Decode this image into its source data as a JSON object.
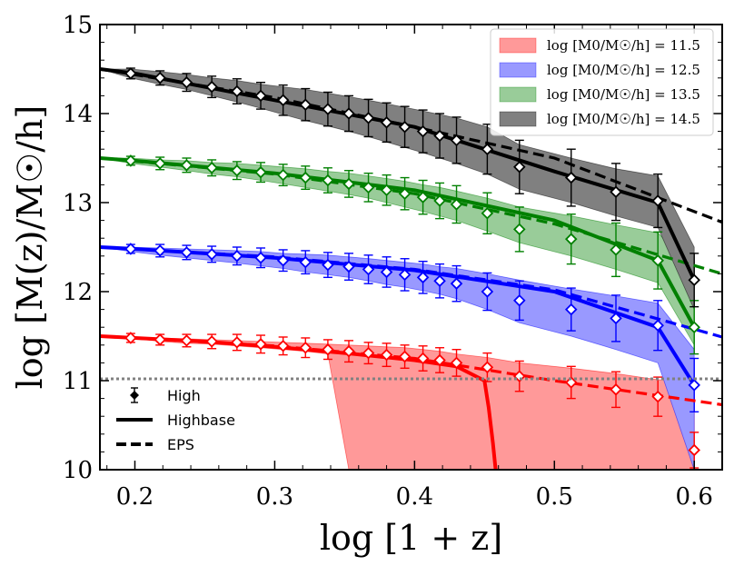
{
  "chart_data": {
    "type": "line",
    "xlabel": "log [1 + z]",
    "ylabel": "log [M(z)/M☉/h]",
    "xlim": [
      0.175,
      0.62
    ],
    "ylim": [
      10,
      15
    ],
    "xticks": [
      0.2,
      0.3,
      0.4,
      0.5,
      0.6
    ],
    "xtick_labels": [
      "0.2",
      "0.3",
      "0.4",
      "0.5",
      "0.6"
    ],
    "yticks": [
      10,
      11,
      12,
      13,
      14,
      15
    ],
    "ytick_labels": [
      "10",
      "11",
      "12",
      "13",
      "14",
      "15"
    ],
    "threshold_line": {
      "y": 11.02,
      "style": "dotted",
      "color": "#808080"
    },
    "x": [
      0.175,
      0.197,
      0.218,
      0.237,
      0.255,
      0.273,
      0.29,
      0.306,
      0.322,
      0.338,
      0.353,
      0.367,
      0.38,
      0.393,
      0.406,
      0.418,
      0.43,
      0.452,
      0.475,
      0.512,
      0.544,
      0.574,
      0.6
    ],
    "series": [
      {
        "name": "log [M0/M☉/h] = 11.5",
        "color": "#ff0000",
        "fill": "#ff9999",
        "mean": [
          11.5,
          11.48,
          11.46,
          11.45,
          11.44,
          11.43,
          11.41,
          11.39,
          11.37,
          11.35,
          11.33,
          11.31,
          11.29,
          11.27,
          11.25,
          11.23,
          11.2,
          11.15,
          11.05,
          10.98,
          10.9,
          10.82,
          10.22
        ],
        "err": [
          0.02,
          0.05,
          0.06,
          0.07,
          0.08,
          0.09,
          0.1,
          0.1,
          0.11,
          0.11,
          0.12,
          0.12,
          0.13,
          0.13,
          0.14,
          0.14,
          0.15,
          0.16,
          0.17,
          0.18,
          0.2,
          0.22,
          0.2
        ],
        "band_upper": [
          11.5,
          11.48,
          11.48,
          11.47,
          11.46,
          11.45,
          11.44,
          11.43,
          11.42,
          11.41,
          11.4,
          11.39,
          11.38,
          11.37,
          11.35,
          11.33,
          11.3,
          11.26,
          11.2,
          11.14,
          11.08,
          11.01,
          11.01
        ],
        "band_lower": [
          11.5,
          11.48,
          11.44,
          11.42,
          11.41,
          11.39,
          11.37,
          11.35,
          11.33,
          11.3,
          10,
          10,
          10,
          10,
          10,
          10,
          10,
          10,
          10,
          10,
          10,
          10,
          10
        ],
        "highbase_x": [
          0.175,
          0.2,
          0.25,
          0.3,
          0.35,
          0.4,
          0.43,
          0.45,
          0.453,
          0.456,
          0.458
        ],
        "highbase_y": [
          11.5,
          11.48,
          11.44,
          11.38,
          11.31,
          11.23,
          11.16,
          11.0,
          10.7,
          10.3,
          10.0
        ],
        "eps_x": [
          0.175,
          0.3,
          0.4,
          0.5,
          0.62
        ],
        "eps_y": [
          11.5,
          11.39,
          11.25,
          11.0,
          10.73
        ]
      },
      {
        "name": "log [M0/M☉/h] = 12.5",
        "color": "#0000ff",
        "fill": "#9999ff",
        "mean": [
          12.5,
          12.48,
          12.46,
          12.44,
          12.42,
          12.4,
          12.38,
          12.35,
          12.33,
          12.3,
          12.28,
          12.25,
          12.22,
          12.19,
          12.16,
          12.12,
          12.09,
          12.0,
          11.9,
          11.8,
          11.7,
          11.62,
          10.95
        ],
        "err": [
          0.02,
          0.05,
          0.07,
          0.08,
          0.09,
          0.1,
          0.11,
          0.12,
          0.13,
          0.14,
          0.15,
          0.16,
          0.17,
          0.18,
          0.18,
          0.19,
          0.2,
          0.21,
          0.22,
          0.24,
          0.26,
          0.28,
          0.3
        ],
        "band_upper": [
          12.5,
          12.5,
          12.49,
          12.48,
          12.47,
          12.46,
          12.45,
          12.43,
          12.42,
          12.41,
          12.39,
          12.37,
          12.35,
          12.33,
          12.31,
          12.28,
          12.26,
          12.2,
          12.13,
          12.03,
          11.95,
          11.87,
          11.35
        ],
        "band_lower": [
          12.5,
          12.45,
          12.41,
          12.38,
          12.35,
          12.32,
          12.29,
          12.26,
          12.22,
          12.19,
          12.16,
          12.12,
          12.08,
          12.05,
          12.01,
          11.97,
          11.92,
          11.8,
          11.65,
          11.5,
          11.35,
          11.2,
          10.0
        ],
        "highbase_x": [
          0.175,
          0.2,
          0.3,
          0.4,
          0.5,
          0.574,
          0.6
        ],
        "highbase_y": [
          12.5,
          12.48,
          12.38,
          12.24,
          12.0,
          11.6,
          10.95
        ],
        "eps_x": [
          0.175,
          0.3,
          0.4,
          0.5,
          0.62
        ],
        "eps_y": [
          12.5,
          12.39,
          12.25,
          12.02,
          11.49
        ]
      },
      {
        "name": "log [M0/M☉/h] = 13.5",
        "color": "#008000",
        "fill": "#99cc99",
        "mean": [
          13.5,
          13.47,
          13.44,
          13.42,
          13.39,
          13.36,
          13.34,
          13.31,
          13.28,
          13.25,
          13.21,
          13.17,
          13.14,
          13.1,
          13.06,
          13.02,
          12.98,
          12.88,
          12.7,
          12.59,
          12.47,
          12.35,
          11.6
        ],
        "err": [
          0.02,
          0.05,
          0.07,
          0.08,
          0.09,
          0.1,
          0.11,
          0.12,
          0.13,
          0.14,
          0.15,
          0.16,
          0.17,
          0.18,
          0.19,
          0.2,
          0.21,
          0.23,
          0.25,
          0.28,
          0.3,
          0.32,
          0.3
        ],
        "band_upper": [
          13.5,
          13.5,
          13.48,
          13.47,
          13.45,
          13.44,
          13.42,
          13.4,
          13.38,
          13.35,
          13.33,
          13.3,
          13.27,
          13.24,
          13.2,
          13.17,
          13.13,
          13.05,
          12.95,
          12.85,
          12.75,
          12.66,
          12.25
        ],
        "band_lower": [
          13.5,
          13.44,
          13.4,
          13.36,
          13.32,
          13.29,
          13.25,
          13.21,
          13.17,
          13.13,
          13.09,
          13.05,
          13.0,
          12.95,
          12.9,
          12.85,
          12.8,
          12.68,
          12.55,
          12.4,
          12.25,
          12.1,
          11.4
        ],
        "highbase_x": [
          0.175,
          0.2,
          0.3,
          0.4,
          0.5,
          0.574,
          0.6
        ],
        "highbase_y": [
          13.5,
          13.47,
          13.33,
          13.14,
          12.8,
          12.35,
          11.6
        ],
        "eps_x": [
          0.175,
          0.3,
          0.4,
          0.5,
          0.62
        ],
        "eps_y": [
          13.5,
          13.32,
          13.1,
          12.76,
          12.2
        ]
      },
      {
        "name": "log [M0/M☉/h] = 14.5",
        "color": "#000000",
        "fill": "#808080",
        "mean": [
          14.5,
          14.45,
          14.4,
          14.35,
          14.3,
          14.25,
          14.2,
          14.15,
          14.1,
          14.05,
          14.0,
          13.95,
          13.9,
          13.85,
          13.8,
          13.75,
          13.7,
          13.6,
          13.4,
          13.28,
          13.12,
          13.02,
          12.13
        ],
        "err": [
          0.02,
          0.06,
          0.08,
          0.1,
          0.12,
          0.14,
          0.15,
          0.17,
          0.18,
          0.19,
          0.2,
          0.21,
          0.22,
          0.23,
          0.24,
          0.25,
          0.26,
          0.28,
          0.3,
          0.32,
          0.32,
          0.3,
          0.3
        ],
        "band_upper": [
          14.5,
          14.5,
          14.47,
          14.44,
          14.4,
          14.37,
          14.33,
          14.3,
          14.27,
          14.23,
          14.19,
          14.15,
          14.11,
          14.07,
          14.03,
          13.99,
          13.95,
          13.85,
          13.65,
          13.5,
          13.38,
          13.3,
          12.5
        ],
        "band_lower": [
          14.5,
          14.4,
          14.33,
          14.27,
          14.2,
          14.13,
          14.06,
          13.99,
          13.92,
          13.86,
          13.8,
          13.74,
          13.68,
          13.62,
          13.56,
          13.5,
          13.44,
          13.32,
          13.15,
          13.0,
          12.85,
          12.72,
          11.8
        ],
        "highbase_x": [
          0.175,
          0.2,
          0.3,
          0.4,
          0.5,
          0.574,
          0.6
        ],
        "highbase_y": [
          14.5,
          14.45,
          14.15,
          13.85,
          13.35,
          13.0,
          12.13
        ],
        "eps_x": [
          0.175,
          0.3,
          0.4,
          0.5,
          0.62
        ],
        "eps_y": [
          14.5,
          14.18,
          13.85,
          13.5,
          12.78
        ]
      }
    ],
    "legend_series": [
      {
        "label": "log [M0/M☉/h] = 11.5",
        "color": "#ff9999",
        "edge": "#ff0000"
      },
      {
        "label": "log [M0/M☉/h] = 12.5",
        "color": "#9999ff",
        "edge": "#0000ff"
      },
      {
        "label": "log [M0/M☉/h] = 13.5",
        "color": "#99cc99",
        "edge": "#008000"
      },
      {
        "label": "log [M0/M☉/h] = 14.5",
        "color": "#808080",
        "edge": "#000000"
      }
    ],
    "legend_styles": [
      {
        "label": "High",
        "style": "errorbar-marker"
      },
      {
        "label": "Highbase",
        "style": "solid"
      },
      {
        "label": "EPS",
        "style": "dashed"
      }
    ]
  }
}
